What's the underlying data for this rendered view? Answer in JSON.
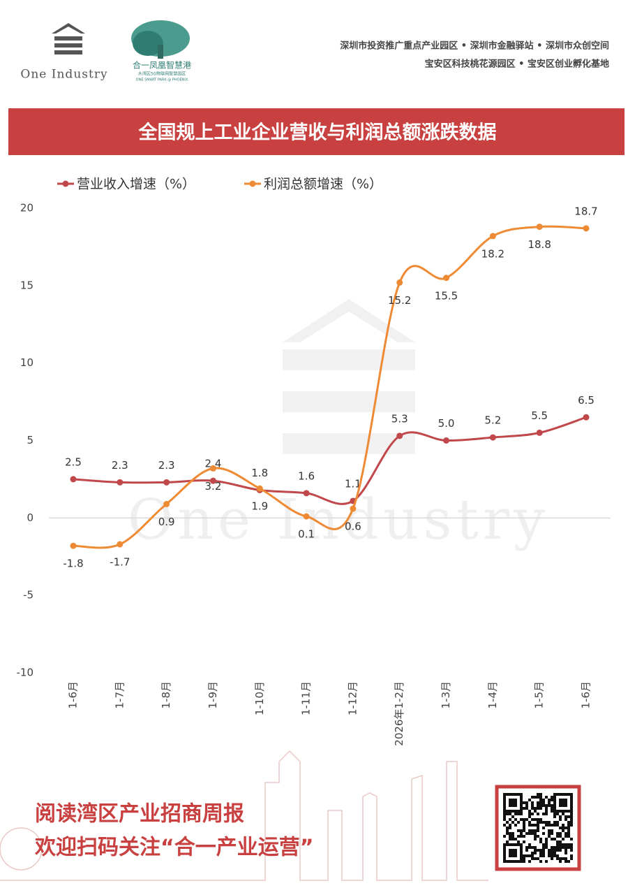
{
  "header": {
    "brand": "One Industry",
    "park_name": "合一凤凰智慧港",
    "park_sub": "大湾区5G物联网智慧园区",
    "park_en": "ONE SMART PARK @ PHOENIX",
    "honors": [
      "深圳市投资推广重点产业园区 • 深圳市金融驿站 • 深圳市众创空间",
      "宝安区科技桃花源园区 • 宝安区创业孵化基地"
    ]
  },
  "chart_data": {
    "type": "line",
    "title": "全国规上工业企业营收与利润总额涨跌数据",
    "categories": [
      "1-6月",
      "1-7月",
      "1-8月",
      "1-9月",
      "1-10月",
      "1-11月",
      "1-12月",
      "2026年1-2月",
      "1-3月",
      "1-4月",
      "1-5月",
      "1-6月"
    ],
    "series": [
      {
        "name": "营业收入增速（%）",
        "color": "#c0474a",
        "values": [
          2.5,
          2.3,
          2.3,
          2.4,
          1.8,
          1.6,
          1.1,
          5.3,
          5.0,
          5.2,
          5.5,
          6.5
        ],
        "value_labels": [
          "2.5",
          "2.3",
          "2.3",
          "2.4",
          "1.8",
          "1.6",
          "1.1",
          "5.3",
          "5.0",
          "5.2",
          "5.5",
          "6.5"
        ]
      },
      {
        "name": "利润总额增速（%）",
        "color": "#ee8a33",
        "values": [
          -1.8,
          -1.7,
          0.9,
          3.2,
          1.9,
          0.1,
          0.6,
          15.2,
          15.5,
          18.2,
          18.8,
          18.7
        ]
      }
    ],
    "ylim": [
      -10,
      20
    ],
    "yticks": [
      -10,
      -5,
      0,
      5,
      10,
      15,
      20
    ],
    "grid": false,
    "legend": "top-left",
    "watermark": "One Industry"
  },
  "footer": {
    "lines": [
      "阅读湾区产业招商周报",
      "欢迎扫码关注“合一产业运营”"
    ]
  }
}
